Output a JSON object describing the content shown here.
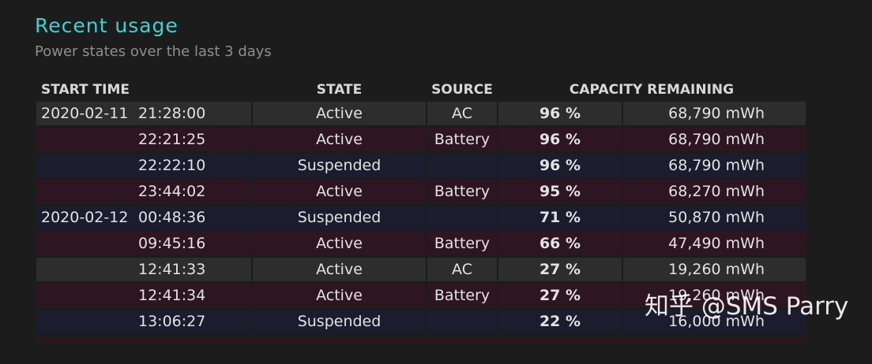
{
  "header": {
    "title": "Recent usage",
    "subtitle": "Power states over the last 3 days"
  },
  "table": {
    "columns": [
      "START TIME",
      "STATE",
      "SOURCE",
      "CAPACITY REMAINING"
    ],
    "rows": [
      {
        "date": "2020-02-11",
        "time": "21:28:00",
        "state": "Active",
        "source": "AC",
        "percent": "96 %",
        "capacity": "68,790 mWh",
        "kind": "ac"
      },
      {
        "date": "",
        "time": "22:21:25",
        "state": "Active",
        "source": "Battery",
        "percent": "96 %",
        "capacity": "68,790 mWh",
        "kind": "battery"
      },
      {
        "date": "",
        "time": "22:22:10",
        "state": "Suspended",
        "source": "",
        "percent": "96 %",
        "capacity": "68,790 mWh",
        "kind": "suspended"
      },
      {
        "date": "",
        "time": "23:44:02",
        "state": "Active",
        "source": "Battery",
        "percent": "95 %",
        "capacity": "68,270 mWh",
        "kind": "battery"
      },
      {
        "date": "2020-02-12",
        "time": "00:48:36",
        "state": "Suspended",
        "source": "",
        "percent": "71 %",
        "capacity": "50,870 mWh",
        "kind": "suspended"
      },
      {
        "date": "",
        "time": "09:45:16",
        "state": "Active",
        "source": "Battery",
        "percent": "66 %",
        "capacity": "47,490 mWh",
        "kind": "battery"
      },
      {
        "date": "",
        "time": "12:41:33",
        "state": "Active",
        "source": "AC",
        "percent": "27 %",
        "capacity": "19,260 mWh",
        "kind": "ac"
      },
      {
        "date": "",
        "time": "12:41:34",
        "state": "Active",
        "source": "Battery",
        "percent": "27 %",
        "capacity": "19,260 mWh",
        "kind": "battery"
      },
      {
        "date": "",
        "time": "13:06:27",
        "state": "Suspended",
        "source": "",
        "percent": "22 %",
        "capacity": "16,000 mWh",
        "kind": "suspended"
      }
    ]
  },
  "colors": {
    "title": "#3fd1d1",
    "row_ac": "#2d2d2d",
    "row_battery": "#2d1622",
    "row_suspended": "#1b1c2e"
  },
  "watermark": "知乎 @SMS Parry"
}
